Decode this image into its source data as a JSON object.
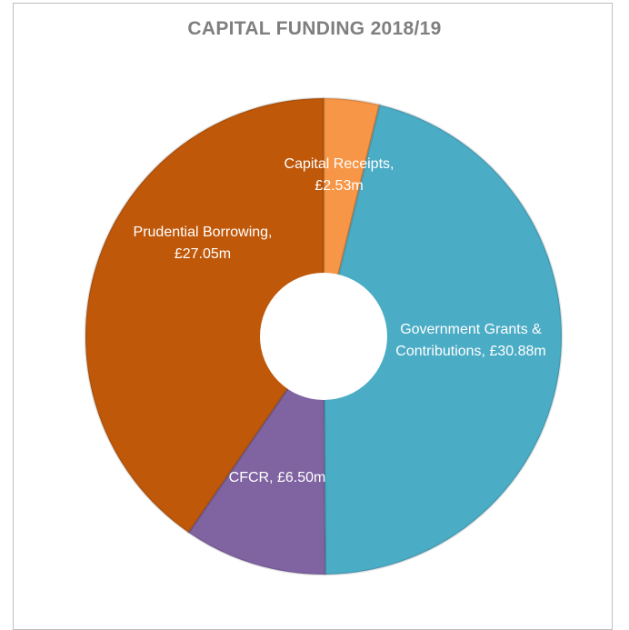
{
  "chart_data": {
    "type": "pie",
    "title": "CAPITAL FUNDING 2018/19",
    "categories": [
      "Capital Receipts",
      "Government Grants & Contributions",
      "CFCR",
      "Prudential Borrowing"
    ],
    "values": [
      2.53,
      30.88,
      6.5,
      27.05
    ],
    "data_labels": [
      [
        "Capital Receipts,",
        "£2.53m"
      ],
      [
        "Government Grants &",
        "Contributions, £30.88m"
      ],
      [
        "CFCR, £6.50m"
      ],
      [
        "Prudential Borrowing,",
        "£27.05m"
      ]
    ],
    "colors": [
      "#f79646",
      "#4bacc6",
      "#8064a2",
      "#c0580a"
    ],
    "donut": true,
    "legend": "none"
  }
}
